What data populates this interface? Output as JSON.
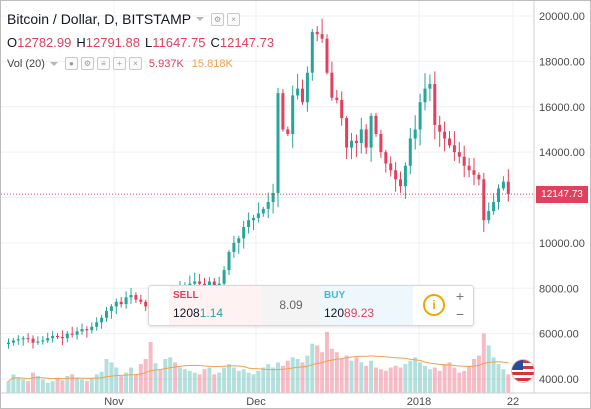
{
  "legend": {
    "symbol": "Bitcoin / Dollar, D, BITSTAMP",
    "ohlc": [
      {
        "key": "O",
        "value": "12782.99"
      },
      {
        "key": "H",
        "value": "12791.88"
      },
      {
        "key": "L",
        "value": "11647.75"
      },
      {
        "key": "C",
        "value": "12147.73"
      }
    ],
    "volume_label": "Vol (20)",
    "volume_value": "5.937K",
    "volume_ma": "15.818K",
    "icons": [
      "settings-icon",
      "close-icon"
    ]
  },
  "price_axis": {
    "ticks": [
      "20000.00",
      "18000.00",
      "16000.00",
      "14000.00",
      "12000.00",
      "10000.00",
      "8000.00",
      "6000.00",
      "4000.00"
    ],
    "current_price": "12147.73"
  },
  "time_axis": {
    "ticks": [
      "Nov",
      "Dec",
      "2018",
      "22"
    ]
  },
  "trade_panel": {
    "sell_label": "SELL",
    "sell_price_prefix": "1208",
    "sell_price_highlight": "1.14",
    "spread": "8.09",
    "buy_label": "BUY",
    "buy_price_prefix": "120",
    "buy_price_highlight": "89.23",
    "info_symbol": "i",
    "plus_symbol": "+",
    "minus_symbol": "−"
  },
  "colors": {
    "up": "#26a69a",
    "down": "#e2405c",
    "volume_ma": "#f0a14d",
    "price_line": "#e2405c"
  },
  "chart_data": {
    "type": "candlestick",
    "title": "Bitcoin / Dollar, D, BITSTAMP",
    "ylim": [
      4000,
      20300
    ],
    "y_ticks": [
      20000,
      18000,
      16000,
      14000,
      12000,
      10000,
      8000,
      6000,
      4000
    ],
    "x_ticks": [
      "Nov",
      "Dec",
      "2018",
      "22"
    ],
    "grid": true,
    "volume_ma": 15818,
    "last_price": 12147.73,
    "closes": [
      5600,
      5700,
      5750,
      5800,
      5780,
      5600,
      5650,
      5700,
      5800,
      5900,
      5850,
      5800,
      6000,
      5950,
      6100,
      6200,
      6150,
      6300,
      6500,
      6700,
      7000,
      7200,
      7400,
      7300,
      7600,
      7700,
      7500,
      7400,
      7200,
      6600,
      7100,
      7000,
      7300,
      7800,
      7700,
      8000,
      8100,
      8200,
      8300,
      8200,
      8000,
      8300,
      8100,
      8200,
      8800,
      9600,
      10000,
      10200,
      10700,
      11000,
      11100,
      11300,
      11500,
      11800,
      12200,
      16600,
      15000,
      14800,
      16500,
      16800,
      16200,
      17500,
      19300,
      19200,
      19000,
      17500,
      16400,
      16300,
      15500,
      14200,
      14500,
      14400,
      15000,
      14200,
      15600,
      14800,
      14000,
      13500,
      13200,
      12800,
      12500,
      13400,
      14600,
      15000,
      16200,
      16800,
      17000,
      15200,
      14900,
      14600,
      14300,
      14000,
      13800,
      13400,
      13200,
      13000,
      12800,
      11000,
      11400,
      11800,
      12400,
      12700,
      12147.73
    ],
    "volumes": [
      14,
      22,
      18,
      16,
      14,
      24,
      20,
      16,
      12,
      14,
      18,
      15,
      20,
      22,
      18,
      16,
      14,
      18,
      22,
      25,
      40,
      36,
      30,
      20,
      24,
      30,
      22,
      34,
      40,
      60,
      35,
      28,
      40,
      42,
      36,
      30,
      28,
      26,
      24,
      22,
      28,
      30,
      22,
      24,
      30,
      34,
      30,
      26,
      28,
      24,
      22,
      26,
      30,
      34,
      30,
      36,
      32,
      38,
      42,
      40,
      36,
      44,
      58,
      56,
      48,
      72,
      52,
      48,
      40,
      44,
      38,
      42,
      36,
      32,
      38,
      30,
      28,
      26,
      30,
      32,
      30,
      34,
      38,
      42,
      36,
      32,
      28,
      30,
      26,
      34,
      36,
      30,
      24,
      26,
      32,
      40,
      44,
      70,
      56,
      42,
      34,
      28,
      22
    ]
  }
}
